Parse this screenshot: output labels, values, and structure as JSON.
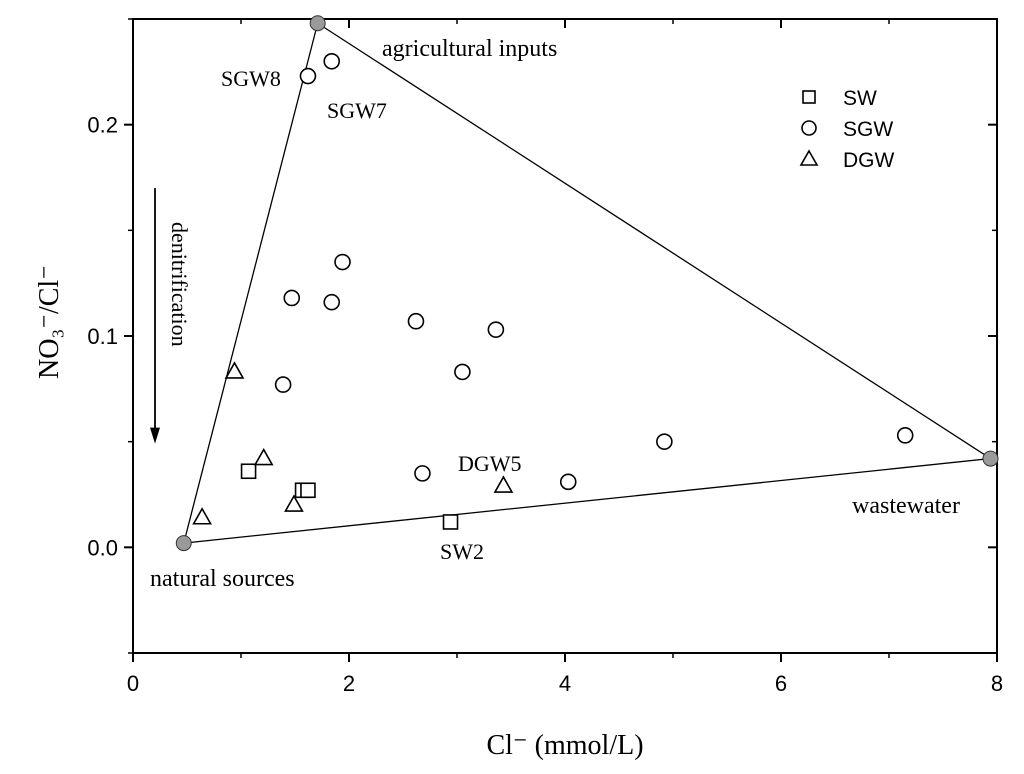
{
  "chart_data": {
    "type": "scatter",
    "xlabel": "Cl⁻ (mmol/L)",
    "ylabel": "NO₃⁻/Cl⁻",
    "xlim": [
      0,
      8
    ],
    "ylim": [
      -0.05,
      0.25
    ],
    "x_ticks": [
      0,
      2,
      4,
      6,
      8
    ],
    "x_tick_labels": [
      "0",
      "2",
      "4",
      "6",
      "8"
    ],
    "y_ticks": [
      0.0,
      0.1,
      0.2
    ],
    "y_tick_labels": [
      "0.0",
      "0.1",
      "0.2"
    ],
    "grid": false,
    "legend_position": "top-right",
    "series": [
      {
        "name": "SW",
        "marker": "square",
        "points": [
          {
            "x": 1.07,
            "y": 0.036
          },
          {
            "x": 1.57,
            "y": 0.027
          },
          {
            "x": 1.62,
            "y": 0.027
          },
          {
            "x": 2.94,
            "y": 0.012
          }
        ]
      },
      {
        "name": "SGW",
        "marker": "circle",
        "points": [
          {
            "x": 1.62,
            "y": 0.223
          },
          {
            "x": 1.84,
            "y": 0.23
          },
          {
            "x": 1.94,
            "y": 0.135
          },
          {
            "x": 1.47,
            "y": 0.118
          },
          {
            "x": 1.84,
            "y": 0.116
          },
          {
            "x": 2.62,
            "y": 0.107
          },
          {
            "x": 3.36,
            "y": 0.103
          },
          {
            "x": 3.05,
            "y": 0.083
          },
          {
            "x": 1.39,
            "y": 0.077
          },
          {
            "x": 2.68,
            "y": 0.035
          },
          {
            "x": 4.03,
            "y": 0.031
          },
          {
            "x": 4.92,
            "y": 0.05
          },
          {
            "x": 7.15,
            "y": 0.053
          }
        ]
      },
      {
        "name": "DGW",
        "marker": "triangle",
        "points": [
          {
            "x": 0.94,
            "y": 0.083
          },
          {
            "x": 1.21,
            "y": 0.042
          },
          {
            "x": 0.64,
            "y": 0.014
          },
          {
            "x": 1.49,
            "y": 0.02
          },
          {
            "x": 3.43,
            "y": 0.029
          }
        ]
      }
    ],
    "end_members": [
      {
        "name": "agricultural inputs",
        "x": 1.71,
        "y": 0.248
      },
      {
        "name": "natural sources",
        "x": 0.47,
        "y": 0.002
      },
      {
        "name": "wastewater",
        "x": 7.94,
        "y": 0.042
      }
    ],
    "annotations": {
      "point_labels": [
        "SGW8",
        "SGW7",
        "DGW5",
        "SW2"
      ],
      "arrow_label": "denitrification",
      "arrow_from_y": 0.17,
      "arrow_to_y": 0.05
    }
  }
}
